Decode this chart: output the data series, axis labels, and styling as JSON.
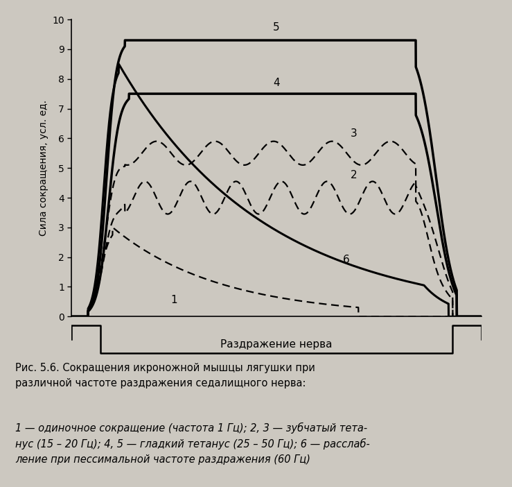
{
  "ylabel": "Сила сокращения, усл. ед.",
  "ylim": [
    0,
    10
  ],
  "yticks": [
    0,
    1,
    2,
    3,
    4,
    5,
    6,
    7,
    8,
    9,
    10
  ],
  "xlabel_stimulus": "Раздражение нерва",
  "caption_bold": "Рис. 5.6.",
  "caption_main": " Сокращения икроножной мышцы лягушки при\nразличной частоте раздражения седалищного нерва:",
  "caption_legend1": "1",
  "caption_legend1_text": " — одиночное сокращение (частота 1 Гц); ",
  "caption_legend23": "2, 3",
  "caption_legend23_text": " — зубчатый тета-\nнус (15 – 20 Гц); ",
  "caption_legend45": "4, 5",
  "caption_legend45_text": " — гладкий тетанус (25 – 50 Гц); ",
  "caption_legend6": "6",
  "caption_legend6_text": " — расслаб-\nление при пессимальной частоте раздражения (60 Гц)",
  "bg_color": "#ccc8c0",
  "line_color": "#000000"
}
